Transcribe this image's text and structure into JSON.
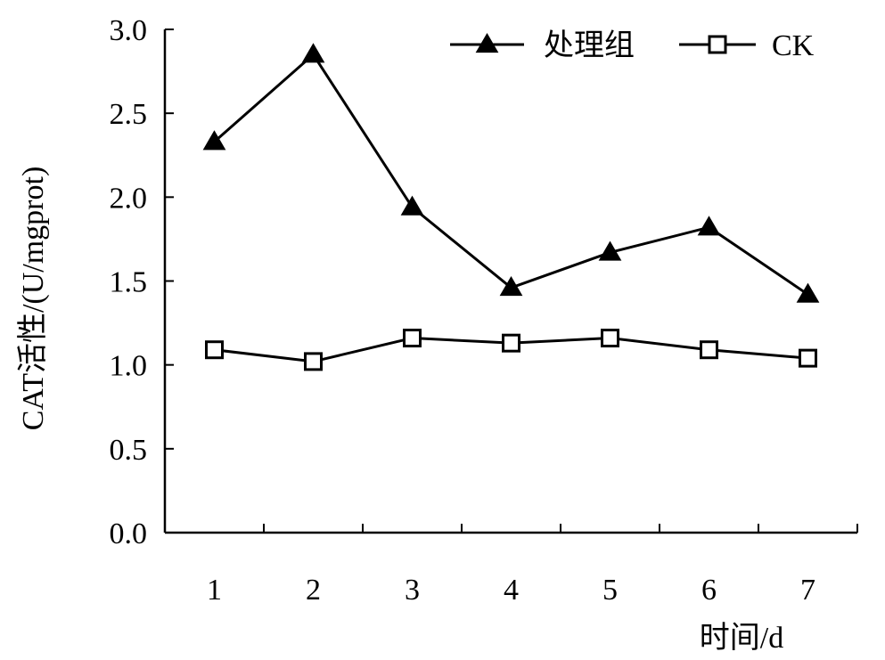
{
  "chart_data": {
    "type": "line",
    "title": "",
    "xlabel": "时间/d",
    "ylabel": "CAT活性/(U/mgprot)",
    "categories": [
      "1",
      "2",
      "3",
      "4",
      "5",
      "6",
      "7"
    ],
    "ylim": [
      0,
      3.0
    ],
    "yticks": [
      "0.0",
      "0.5",
      "1.0",
      "1.5",
      "2.0",
      "2.5",
      "3.0"
    ],
    "grid": false,
    "legend_position": "top-right",
    "series": [
      {
        "name": "处理组",
        "marker": "filled-triangle",
        "color": "#000000",
        "values": [
          2.33,
          2.85,
          1.94,
          1.46,
          1.67,
          1.82,
          1.42
        ]
      },
      {
        "name": "CK",
        "marker": "open-square",
        "color": "#000000",
        "values": [
          1.09,
          1.02,
          1.16,
          1.13,
          1.16,
          1.09,
          1.04
        ]
      }
    ]
  }
}
